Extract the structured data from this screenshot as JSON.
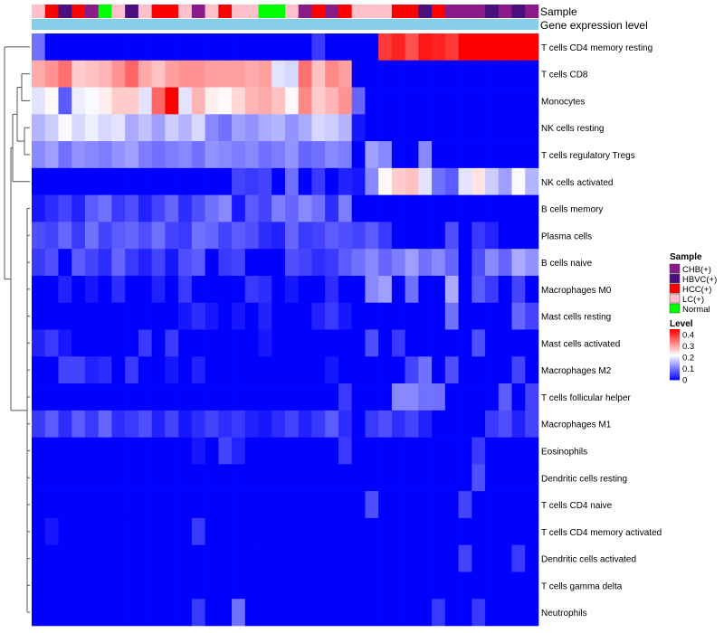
{
  "chart_data": {
    "type": "heatmap",
    "annotation_titles": [
      "Sample",
      "Gene expression level"
    ],
    "sample_groups": [
      "LC(+)",
      "HCC(+)",
      "HBVC(+)",
      "HCC(+)",
      "CHB(+)",
      "Normal",
      "LC(+)",
      "HBVC(+)",
      "LC(+)",
      "HCC(+)",
      "HCC(+)",
      "LC(+)",
      "CHB(+)",
      "LC(+)",
      "HCC(+)",
      "LC(+)",
      "LC(+)",
      "Normal",
      "Normal",
      "LC(+)",
      "CHB(+)",
      "HCC(+)",
      "CHB(+)",
      "HCC(+)",
      "LC(+)",
      "LC(+)",
      "LC(+)",
      "HCC(+)",
      "HCC(+)",
      "HBVC(+)",
      "HCC(+)",
      "CHB(+)",
      "CHB(+)",
      "CHB(+)",
      "HBVC(+)",
      "CHB(+)",
      "HBVC(+)",
      "CHB(+)"
    ],
    "rows": [
      "T cells CD4 memory resting",
      "T cells CD8",
      "Monocytes",
      "NK cells resting",
      "T cells regulatory  Tregs",
      "NK cells activated",
      "B cells memory",
      "Plasma cells",
      "B cells naive",
      "Macrophages M0",
      "Mast cells resting",
      "Mast cells activated",
      "Macrophages M2",
      "T cells follicular helper",
      "Macrophages M1",
      "Eosinophils",
      "Dendritic cells resting",
      "T cells CD4 naive",
      "T cells CD4 memory activated",
      "Dendritic cells activated",
      "T cells gamma delta",
      "Neutrophils"
    ],
    "values": [
      [
        0.1,
        0.0,
        0.0,
        0.0,
        0.0,
        0.0,
        0.0,
        0.0,
        0.0,
        0.0,
        0.0,
        0.0,
        0.0,
        0.0,
        0.0,
        0.0,
        0.0,
        0.0,
        0.0,
        0.0,
        0.0,
        0.05,
        0.0,
        0.0,
        0.0,
        0.0,
        0.4,
        0.42,
        0.38,
        0.43,
        0.42,
        0.4,
        0.45,
        0.45,
        0.45,
        0.45,
        0.45,
        0.45
      ],
      [
        0.3,
        0.32,
        0.35,
        0.27,
        0.28,
        0.29,
        0.32,
        0.36,
        0.3,
        0.28,
        0.31,
        0.32,
        0.32,
        0.31,
        0.31,
        0.31,
        0.3,
        0.31,
        0.2,
        0.19,
        0.35,
        0.28,
        0.33,
        0.31,
        0.0,
        0.0,
        0.0,
        0.0,
        0.0,
        0.0,
        0.0,
        0.0,
        0.0,
        0.0,
        0.0,
        0.0,
        0.0,
        0.0
      ],
      [
        0.2,
        0.23,
        0.08,
        0.21,
        0.22,
        0.24,
        0.27,
        0.27,
        0.2,
        0.36,
        0.45,
        0.2,
        0.29,
        0.24,
        0.23,
        0.26,
        0.29,
        0.3,
        0.28,
        0.23,
        0.33,
        0.27,
        0.29,
        0.32,
        0.09,
        0.0,
        0.0,
        0.0,
        0.0,
        0.0,
        0.0,
        0.0,
        0.0,
        0.0,
        0.0,
        0.0,
        0.0,
        0.0
      ],
      [
        0.16,
        0.18,
        0.22,
        0.19,
        0.21,
        0.19,
        0.2,
        0.15,
        0.17,
        0.14,
        0.18,
        0.16,
        0.19,
        0.12,
        0.1,
        0.14,
        0.13,
        0.15,
        0.16,
        0.13,
        0.15,
        0.19,
        0.18,
        0.16,
        0.02,
        0.0,
        0.0,
        0.0,
        0.0,
        0.0,
        0.0,
        0.0,
        0.0,
        0.0,
        0.0,
        0.0,
        0.0,
        0.0
      ],
      [
        0.12,
        0.14,
        0.1,
        0.13,
        0.12,
        0.11,
        0.13,
        0.14,
        0.11,
        0.1,
        0.11,
        0.12,
        0.1,
        0.13,
        0.12,
        0.11,
        0.12,
        0.1,
        0.11,
        0.13,
        0.09,
        0.1,
        0.12,
        0.11,
        0.0,
        0.14,
        0.12,
        0.0,
        0.0,
        0.12,
        0.0,
        0.0,
        0.0,
        0.0,
        0.0,
        0.0,
        0.0,
        0.0
      ],
      [
        0.0,
        0.0,
        0.0,
        0.0,
        0.0,
        0.0,
        0.0,
        0.0,
        0.0,
        0.0,
        0.0,
        0.0,
        0.0,
        0.0,
        0.0,
        0.06,
        0.05,
        0.06,
        0.0,
        0.1,
        0.0,
        0.05,
        0.0,
        0.03,
        0.02,
        0.12,
        0.23,
        0.27,
        0.28,
        0.2,
        0.1,
        0.08,
        0.2,
        0.25,
        0.18,
        0.14,
        0.22,
        0.16
      ],
      [
        0.02,
        0.04,
        0.06,
        0.03,
        0.08,
        0.1,
        0.05,
        0.07,
        0.03,
        0.06,
        0.09,
        0.04,
        0.07,
        0.1,
        0.12,
        0.02,
        0.08,
        0.06,
        0.11,
        0.09,
        0.12,
        0.1,
        0.04,
        0.11,
        0.0,
        0.0,
        0.0,
        0.0,
        0.0,
        0.0,
        0.0,
        0.0,
        0.0,
        0.0,
        0.0,
        0.0,
        0.0,
        0.0
      ],
      [
        0.07,
        0.06,
        0.09,
        0.05,
        0.1,
        0.06,
        0.08,
        0.09,
        0.07,
        0.1,
        0.06,
        0.05,
        0.1,
        0.09,
        0.06,
        0.08,
        0.07,
        0.04,
        0.03,
        0.09,
        0.05,
        0.06,
        0.08,
        0.07,
        0.06,
        0.08,
        0.05,
        0.0,
        0.0,
        0.0,
        0.0,
        0.07,
        0.0,
        0.05,
        0.03,
        0.0,
        0.0,
        0.0
      ],
      [
        0.05,
        0.07,
        0.0,
        0.08,
        0.06,
        0.04,
        0.09,
        0.05,
        0.03,
        0.06,
        0.02,
        0.07,
        0.08,
        0.0,
        0.05,
        0.06,
        0.0,
        0.0,
        0.0,
        0.07,
        0.06,
        0.04,
        0.05,
        0.08,
        0.1,
        0.12,
        0.09,
        0.11,
        0.14,
        0.1,
        0.12,
        0.09,
        0.0,
        0.07,
        0.12,
        0.09,
        0.15,
        0.13
      ],
      [
        0.0,
        0.0,
        0.03,
        0.0,
        0.02,
        0.0,
        0.04,
        0.0,
        0.0,
        0.03,
        0.0,
        0.05,
        0.0,
        0.0,
        0.0,
        0.0,
        0.05,
        0.04,
        0.0,
        0.02,
        0.0,
        0.0,
        0.04,
        0.0,
        0.0,
        0.12,
        0.14,
        0.0,
        0.1,
        0.0,
        0.0,
        0.15,
        0.0,
        0.08,
        0.05,
        0.0,
        0.06,
        0.0
      ],
      [
        0.0,
        0.0,
        0.0,
        0.0,
        0.0,
        0.0,
        0.0,
        0.0,
        0.0,
        0.0,
        0.0,
        0.02,
        0.04,
        0.02,
        0.0,
        0.02,
        0.0,
        0.03,
        0.0,
        0.0,
        0.0,
        0.03,
        0.05,
        0.02,
        0.0,
        0.0,
        0.0,
        0.0,
        0.0,
        0.0,
        0.0,
        0.1,
        0.0,
        0.0,
        0.0,
        0.0,
        0.09,
        0.06
      ],
      [
        0.03,
        0.05,
        0.02,
        0.0,
        0.0,
        0.0,
        0.0,
        0.0,
        0.05,
        0.0,
        0.05,
        0.0,
        0.0,
        0.0,
        0.0,
        0.0,
        0.0,
        0.02,
        0.0,
        0.0,
        0.0,
        0.0,
        0.0,
        0.0,
        0.0,
        0.07,
        0.0,
        0.05,
        0.0,
        0.0,
        0.0,
        0.0,
        0.0,
        0.07,
        0.0,
        0.0,
        0.0,
        0.0
      ],
      [
        0.0,
        0.0,
        0.06,
        0.06,
        0.03,
        0.04,
        0.0,
        0.05,
        0.0,
        0.0,
        0.02,
        0.0,
        0.03,
        0.0,
        0.0,
        0.0,
        0.0,
        0.0,
        0.0,
        0.0,
        0.0,
        0.0,
        0.02,
        0.0,
        0.0,
        0.0,
        0.0,
        0.0,
        0.06,
        0.1,
        0.0,
        0.07,
        0.0,
        0.0,
        0.0,
        0.0,
        0.06,
        0.0
      ],
      [
        0.0,
        0.0,
        0.0,
        0.0,
        0.0,
        0.0,
        0.0,
        0.0,
        0.0,
        0.0,
        0.0,
        0.0,
        0.0,
        0.0,
        0.0,
        0.0,
        0.0,
        0.0,
        0.0,
        0.0,
        0.0,
        0.0,
        0.0,
        0.05,
        0.0,
        0.0,
        0.0,
        0.12,
        0.12,
        0.1,
        0.1,
        0.0,
        0.0,
        0.0,
        0.0,
        0.08,
        0.0,
        0.06
      ],
      [
        0.05,
        0.08,
        0.04,
        0.08,
        0.05,
        0.09,
        0.04,
        0.05,
        0.07,
        0.03,
        0.06,
        0.02,
        0.04,
        0.06,
        0.04,
        0.05,
        0.03,
        0.02,
        0.04,
        0.06,
        0.03,
        0.05,
        0.08,
        0.04,
        0.0,
        0.05,
        0.07,
        0.04,
        0.06,
        0.03,
        0.0,
        0.0,
        0.0,
        0.0,
        0.05,
        0.07,
        0.03,
        0.06
      ],
      [
        0.0,
        0.0,
        0.0,
        0.0,
        0.0,
        0.0,
        0.0,
        0.0,
        0.0,
        0.0,
        0.0,
        0.0,
        0.02,
        0.0,
        0.06,
        0.03,
        0.0,
        0.0,
        0.0,
        0.0,
        0.0,
        0.0,
        0.0,
        0.05,
        0.0,
        0.0,
        0.0,
        0.0,
        0.0,
        0.0,
        0.0,
        0.0,
        0.0,
        0.05,
        0.0,
        0.0,
        0.0,
        0.0
      ],
      [
        0.0,
        0.0,
        0.0,
        0.0,
        0.0,
        0.0,
        0.0,
        0.0,
        0.0,
        0.0,
        0.0,
        0.0,
        0.0,
        0.0,
        0.0,
        0.0,
        0.0,
        0.0,
        0.0,
        0.0,
        0.0,
        0.0,
        0.0,
        0.0,
        0.0,
        0.0,
        0.0,
        0.0,
        0.0,
        0.0,
        0.0,
        0.0,
        0.0,
        0.07,
        0.0,
        0.0,
        0.0,
        0.0
      ],
      [
        0.0,
        0.0,
        0.0,
        0.0,
        0.0,
        0.0,
        0.0,
        0.0,
        0.0,
        0.0,
        0.0,
        0.0,
        0.0,
        0.0,
        0.0,
        0.0,
        0.0,
        0.0,
        0.0,
        0.0,
        0.0,
        0.0,
        0.0,
        0.0,
        0.0,
        0.07,
        0.0,
        0.0,
        0.0,
        0.0,
        0.0,
        0.0,
        0.06,
        0.0,
        0.0,
        0.0,
        0.0,
        0.0
      ],
      [
        0.0,
        0.02,
        0.0,
        0.0,
        0.0,
        0.0,
        0.0,
        0.0,
        0.0,
        0.0,
        0.0,
        0.0,
        0.05,
        0.0,
        0.0,
        0.0,
        0.0,
        0.0,
        0.0,
        0.0,
        0.0,
        0.0,
        0.0,
        0.0,
        0.0,
        0.0,
        0.0,
        0.0,
        0.0,
        0.0,
        0.0,
        0.0,
        0.0,
        0.0,
        0.0,
        0.0,
        0.0,
        0.0
      ],
      [
        0.0,
        0.0,
        0.0,
        0.0,
        0.0,
        0.0,
        0.0,
        0.0,
        0.0,
        0.0,
        0.0,
        0.0,
        0.0,
        0.0,
        0.0,
        0.0,
        0.0,
        0.0,
        0.0,
        0.0,
        0.0,
        0.0,
        0.0,
        0.0,
        0.0,
        0.0,
        0.0,
        0.0,
        0.0,
        0.0,
        0.0,
        0.0,
        0.06,
        0.0,
        0.0,
        0.0,
        0.05,
        0.0
      ],
      [
        0.0,
        0.0,
        0.0,
        0.0,
        0.0,
        0.0,
        0.0,
        0.0,
        0.0,
        0.0,
        0.0,
        0.0,
        0.0,
        0.0,
        0.0,
        0.0,
        0.0,
        0.0,
        0.0,
        0.0,
        0.0,
        0.0,
        0.0,
        0.0,
        0.0,
        0.0,
        0.0,
        0.0,
        0.0,
        0.0,
        0.0,
        0.0,
        0.0,
        0.0,
        0.0,
        0.0,
        0.0,
        0.0
      ],
      [
        0.0,
        0.0,
        0.0,
        0.0,
        0.0,
        0.0,
        0.0,
        0.0,
        0.0,
        0.0,
        0.0,
        0.0,
        0.05,
        0.0,
        0.0,
        0.1,
        0.0,
        0.0,
        0.0,
        0.0,
        0.0,
        0.0,
        0.0,
        0.0,
        0.0,
        0.0,
        0.0,
        0.0,
        0.0,
        0.0,
        0.05,
        0.0,
        0.0,
        0.05,
        0.0,
        0.0,
        0.0,
        0.0
      ]
    ],
    "legend_sample": {
      "title": "Sample",
      "items": [
        {
          "label": "CHB(+)",
          "color": "#8b1a89"
        },
        {
          "label": "HBVC(+)",
          "color": "#4b0f7d"
        },
        {
          "label": "HCC(+)",
          "color": "#ff0000"
        },
        {
          "label": "LC(+)",
          "color": "#ffc0cb"
        },
        {
          "label": "Normal",
          "color": "#00ff00"
        }
      ]
    },
    "legend_level": {
      "title": "Level",
      "ticks": [
        "0.4",
        "0.3",
        "0.2",
        "0.1",
        "0"
      ],
      "range": [
        0,
        0.45
      ]
    },
    "expression_bar_color": "#87ceeb",
    "color_scale": [
      "#0000ff",
      "#ffffff",
      "#ff0000"
    ]
  }
}
